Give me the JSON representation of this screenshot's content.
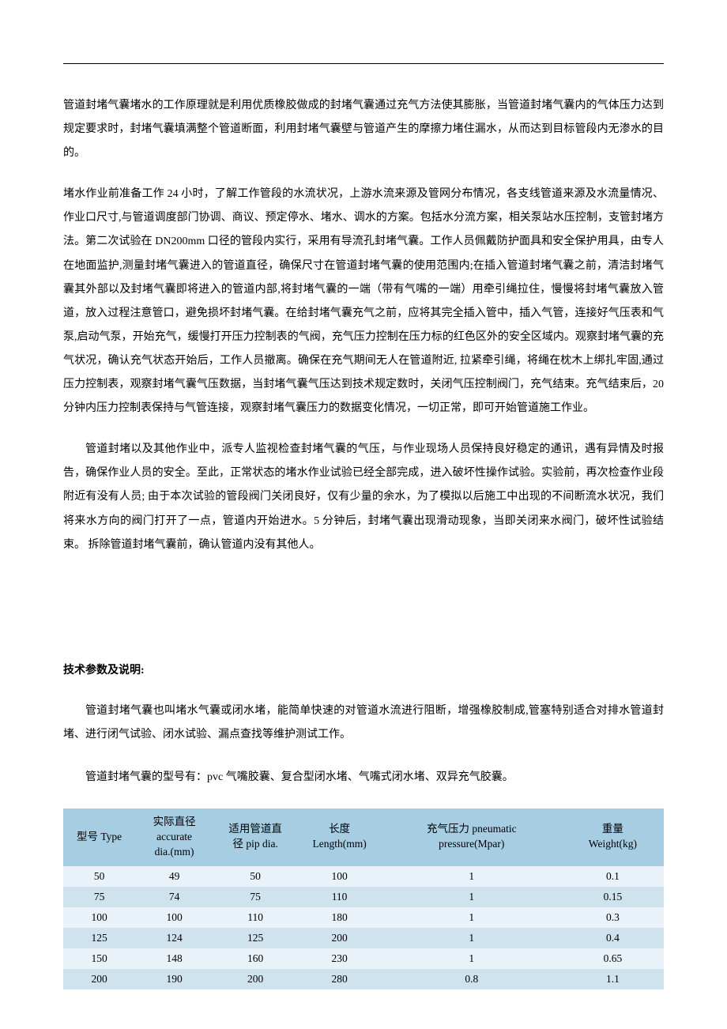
{
  "paragraphs": {
    "p1": "管道封堵气囊堵水的工作原理就是利用优质橡胶做成的封堵气囊通过充气方法使其膨胀，当管道封堵气囊内的气体压力达到规定要求时，封堵气囊填满整个管道断面，利用封堵气囊壁与管道产生的摩擦力堵住漏水，从而达到目标管段内无渗水的目的。",
    "p2": "堵水作业前准备工作 24 小时，了解工作管段的水流状况，上游水流来源及管网分布情况，各支线管道来源及水流量情况、作业口尺寸,与管道调度部门协调、商议、预定停水、堵水、调水的方案。包括水分流方案，相关泵站水压控制，支管封堵方法。第二次试验在 DN200mm 口径的管段内实行，采用有导流孔封堵气囊。工作人员佩戴防护面具和安全保护用具，由专人在地面监护,测量封堵气囊进入的管道直径，确保尺寸在管道封堵气囊的使用范围内;在插入管道封堵气囊之前，清洁封堵气囊其外部以及封堵气囊即将进入的管道内部,将封堵气囊的一端（带有气嘴的一端）用牵引绳拉住，慢慢将封堵气囊放入管道，放入过程注意管口，避免损坏封堵气囊。在给封堵气囊充气之前，应将其完全插入管中，插入气管，连接好气压表和气泵,启动气泵，开始充气，缓慢打开压力控制表的气阀，充气压力控制在压力标的红色区外的安全区域内。观察封堵气囊的充气状况，确认充气状态开始后，工作人员撤离。确保在充气期间无人在管道附近, 拉紧牵引绳，将绳在枕木上绑扎牢固,通过压力控制表，观察封堵气囊气压数据，当封堵气囊气压达到技术规定数时，关闭气压控制阀门，充气结束。充气结束后，20 分钟内压力控制表保持与气管连接，观察封堵气囊压力的数据变化情况，一切正常，即可开始管道施工作业。",
    "p3": "管道封堵以及其他作业中，派专人监视检查封堵气囊的气压，与作业现场人员保持良好稳定的通讯，遇有异情及时报告，确保作业人员的安全。至此，正常状态的堵水作业试验已经全部完成，进入破坏性操作试验。实验前，再次检查作业段附近有没有人员; 由于本次试验的管段阀门关闭良好，仅有少量的余水，为了模拟以后施工中出现的不间断流水状况，我们将来水方向的阀门打开了一点，管道内开始进水。5 分钟后，封堵气囊出现滑动现象，当即关闭来水阀门，破坏性试验结束。 拆除管道封堵气囊前，确认管道内没有其他人。"
  },
  "section_heading": "技术参数及说明:",
  "desc_para": "管道封堵气囊也叫堵水气囊或闭水堵，能简单快速的对管道水流进行阻断，增强橡胶制成,管塞特别适合对排水管道封堵、进行闭气试验、闭水试验、漏点查找等维护测试工作。",
  "types_para": "管道封堵气囊的型号有：pvc 气嘴胶囊、复合型闭水堵、气嘴式闭水堵、双异充气胶囊。",
  "table": {
    "columns": [
      "型号 Type",
      "实际直径\naccurate\ndia.(mm)",
      "适用管道直\n径 pip dia.",
      "长度\nLength(mm)",
      "充气压力 pneumatic\npressure(Mpar)",
      "重量\nWeight(kg)"
    ],
    "rows": [
      [
        "50",
        "49",
        "50",
        "100",
        "1",
        "0.1"
      ],
      [
        "75",
        "74",
        "75",
        "110",
        "1",
        "0.15"
      ],
      [
        "100",
        "100",
        "110",
        "180",
        "1",
        "0.3"
      ],
      [
        "125",
        "124",
        "125",
        "200",
        "1",
        "0.4"
      ],
      [
        "150",
        "148",
        "160",
        "230",
        "1",
        "0.65"
      ],
      [
        "200",
        "190",
        "200",
        "280",
        "0.8",
        "1.1"
      ]
    ],
    "header_bg": "#a7cde2",
    "row_odd_bg": "#e8f2f8",
    "row_even_bg": "#cfe3ef",
    "text_color": "#000000"
  }
}
